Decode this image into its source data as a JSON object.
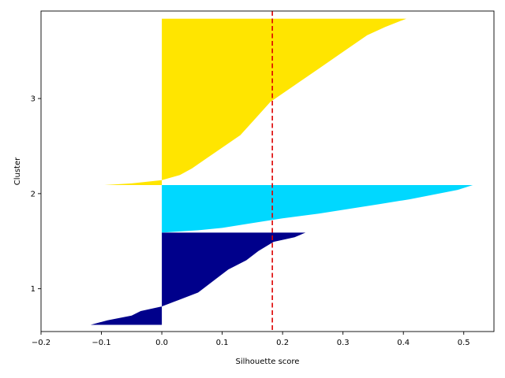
{
  "chart_data": {
    "type": "silhouette",
    "xlabel": "Silhouette score",
    "ylabel": "Cluster",
    "xlim": [
      -0.2,
      0.55
    ],
    "ylim": [
      0.55,
      3.92
    ],
    "xticks": [
      -0.2,
      -0.1,
      0.0,
      0.1,
      0.2,
      0.3,
      0.4,
      0.5
    ],
    "xtick_labels": [
      "−0.2",
      "−0.1",
      "0.0",
      "0.1",
      "0.2",
      "0.3",
      "0.4",
      "0.5"
    ],
    "yticks": [
      1,
      2,
      3
    ],
    "ytick_labels": [
      "1",
      "2",
      "3"
    ],
    "grid": false,
    "average_score": 0.183,
    "average_line_color": "#dd0000",
    "clusters": [
      {
        "label": "1",
        "color": "#00008b",
        "y_range": [
          0.62,
          1.59
        ],
        "profile": [
          [
            0.0,
            -0.118
          ],
          [
            0.05,
            -0.09
          ],
          [
            0.1,
            -0.05
          ],
          [
            0.15,
            -0.035
          ],
          [
            0.2,
            0.0
          ],
          [
            0.25,
            0.02
          ],
          [
            0.35,
            0.06
          ],
          [
            0.5,
            0.09
          ],
          [
            0.6,
            0.11
          ],
          [
            0.7,
            0.14
          ],
          [
            0.8,
            0.16
          ],
          [
            0.9,
            0.185
          ],
          [
            0.95,
            0.22
          ],
          [
            1.0,
            0.238
          ]
        ]
      },
      {
        "label": "2",
        "color": "#00d8ff",
        "y_range": [
          1.59,
          2.09
        ],
        "profile": [
          [
            0.0,
            0.0
          ],
          [
            0.05,
            0.06
          ],
          [
            0.1,
            0.1
          ],
          [
            0.2,
            0.15
          ],
          [
            0.3,
            0.2
          ],
          [
            0.4,
            0.26
          ],
          [
            0.5,
            0.31
          ],
          [
            0.6,
            0.36
          ],
          [
            0.7,
            0.41
          ],
          [
            0.8,
            0.45
          ],
          [
            0.9,
            0.49
          ],
          [
            1.0,
            0.515
          ]
        ]
      },
      {
        "label": "3",
        "color": "#ffe500",
        "y_range": [
          2.09,
          3.84
        ],
        "profile": [
          [
            0.0,
            -0.095
          ],
          [
            0.01,
            -0.05
          ],
          [
            0.03,
            0.0
          ],
          [
            0.06,
            0.03
          ],
          [
            0.1,
            0.05
          ],
          [
            0.15,
            0.07
          ],
          [
            0.2,
            0.09
          ],
          [
            0.3,
            0.13
          ],
          [
            0.4,
            0.155
          ],
          [
            0.5,
            0.18
          ],
          [
            0.6,
            0.22
          ],
          [
            0.7,
            0.26
          ],
          [
            0.8,
            0.3
          ],
          [
            0.9,
            0.34
          ],
          [
            0.95,
            0.37
          ],
          [
            1.0,
            0.405
          ]
        ]
      }
    ]
  }
}
